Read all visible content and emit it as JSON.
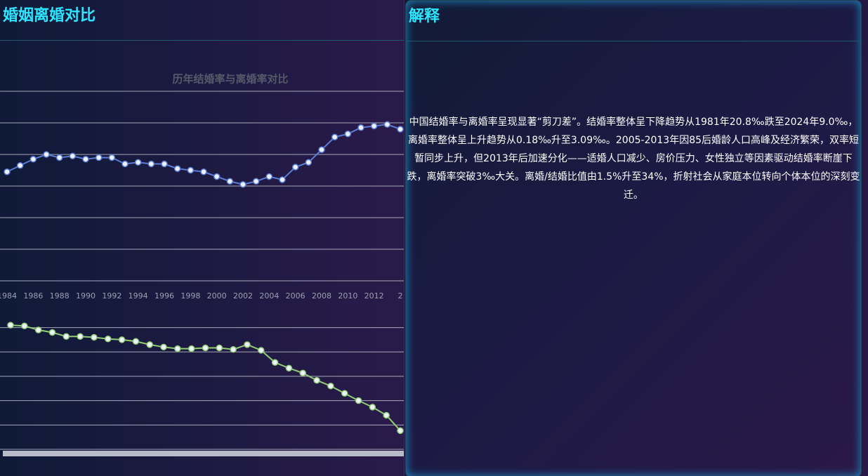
{
  "left_panel": {
    "title": "婚姻离婚对比"
  },
  "right_panel": {
    "title": "解释",
    "text": "中国结婚率与离婚率呈现显著“剪刀差”。结婚率整体呈下降趋势从1981年20.8‰跌至2024年9.0‰，离婚率整体呈上升趋势从0.18‰升至3.09‰。2005-2013年因85后婚龄人口高峰及经济繁荣，双率短暂同步上升，但2013年后加速分化——适婚人口减少、房价压力、女性独立等因素驱动结婚率断崖下跌，离婚率突破3‰大关。离婚/结婚比值由1.5%升至34%，折射社会从家庭本位转向个体本位的深刻变迁。"
  },
  "chart_data": [
    {
      "type": "line",
      "title": "历年结婚率与离婚率对比",
      "categories": [
        "1984",
        null,
        "1986",
        null,
        "1988",
        null,
        "1990",
        null,
        "1992",
        null,
        "1994",
        null,
        "1996",
        null,
        "1998",
        null,
        "2000",
        null,
        "2002",
        null,
        "2004",
        null,
        "2006",
        null,
        "2008",
        null,
        "2010",
        null,
        "2012",
        null,
        "2"
      ],
      "series": [
        {
          "color": "#5b7bd5",
          "values": [
            6.9,
            7.3,
            7.7,
            8.0,
            7.8,
            7.9,
            7.7,
            7.8,
            7.8,
            7.4,
            7.5,
            7.4,
            7.4,
            7.1,
            7.0,
            6.9,
            6.6,
            6.3,
            6.1,
            6.3,
            6.6,
            6.4,
            7.2,
            7.5,
            8.3,
            9.1,
            9.3,
            9.7,
            9.8,
            9.9,
            9.6
          ]
        }
      ],
      "ylim": [
        0,
        12
      ],
      "yticks": [
        0,
        2,
        4,
        6,
        8,
        10,
        12
      ],
      "grid": true
    },
    {
      "type": "line",
      "categories": [
        null,
        null,
        null,
        null,
        null,
        null,
        null,
        null,
        null,
        null,
        null,
        null,
        null,
        null,
        null,
        null,
        null,
        null,
        null,
        null,
        null,
        null,
        null,
        null,
        null,
        null,
        null,
        null,
        null
      ],
      "series": [
        {
          "color": "#91cc75",
          "values": [
            15.3,
            15.2,
            14.7,
            14.4,
            13.9,
            13.9,
            13.8,
            13.6,
            13.5,
            13.3,
            12.9,
            12.6,
            12.4,
            12.4,
            12.5,
            12.5,
            12.3,
            12.9,
            12.2,
            10.7,
            10.0,
            9.4,
            8.5,
            7.8,
            6.9,
            6.0,
            5.2,
            4.2,
            2.3
          ]
        }
      ],
      "ylim": [
        0,
        16
      ],
      "yticks": [
        0,
        3,
        6,
        9,
        12,
        15
      ],
      "grid": true
    }
  ]
}
